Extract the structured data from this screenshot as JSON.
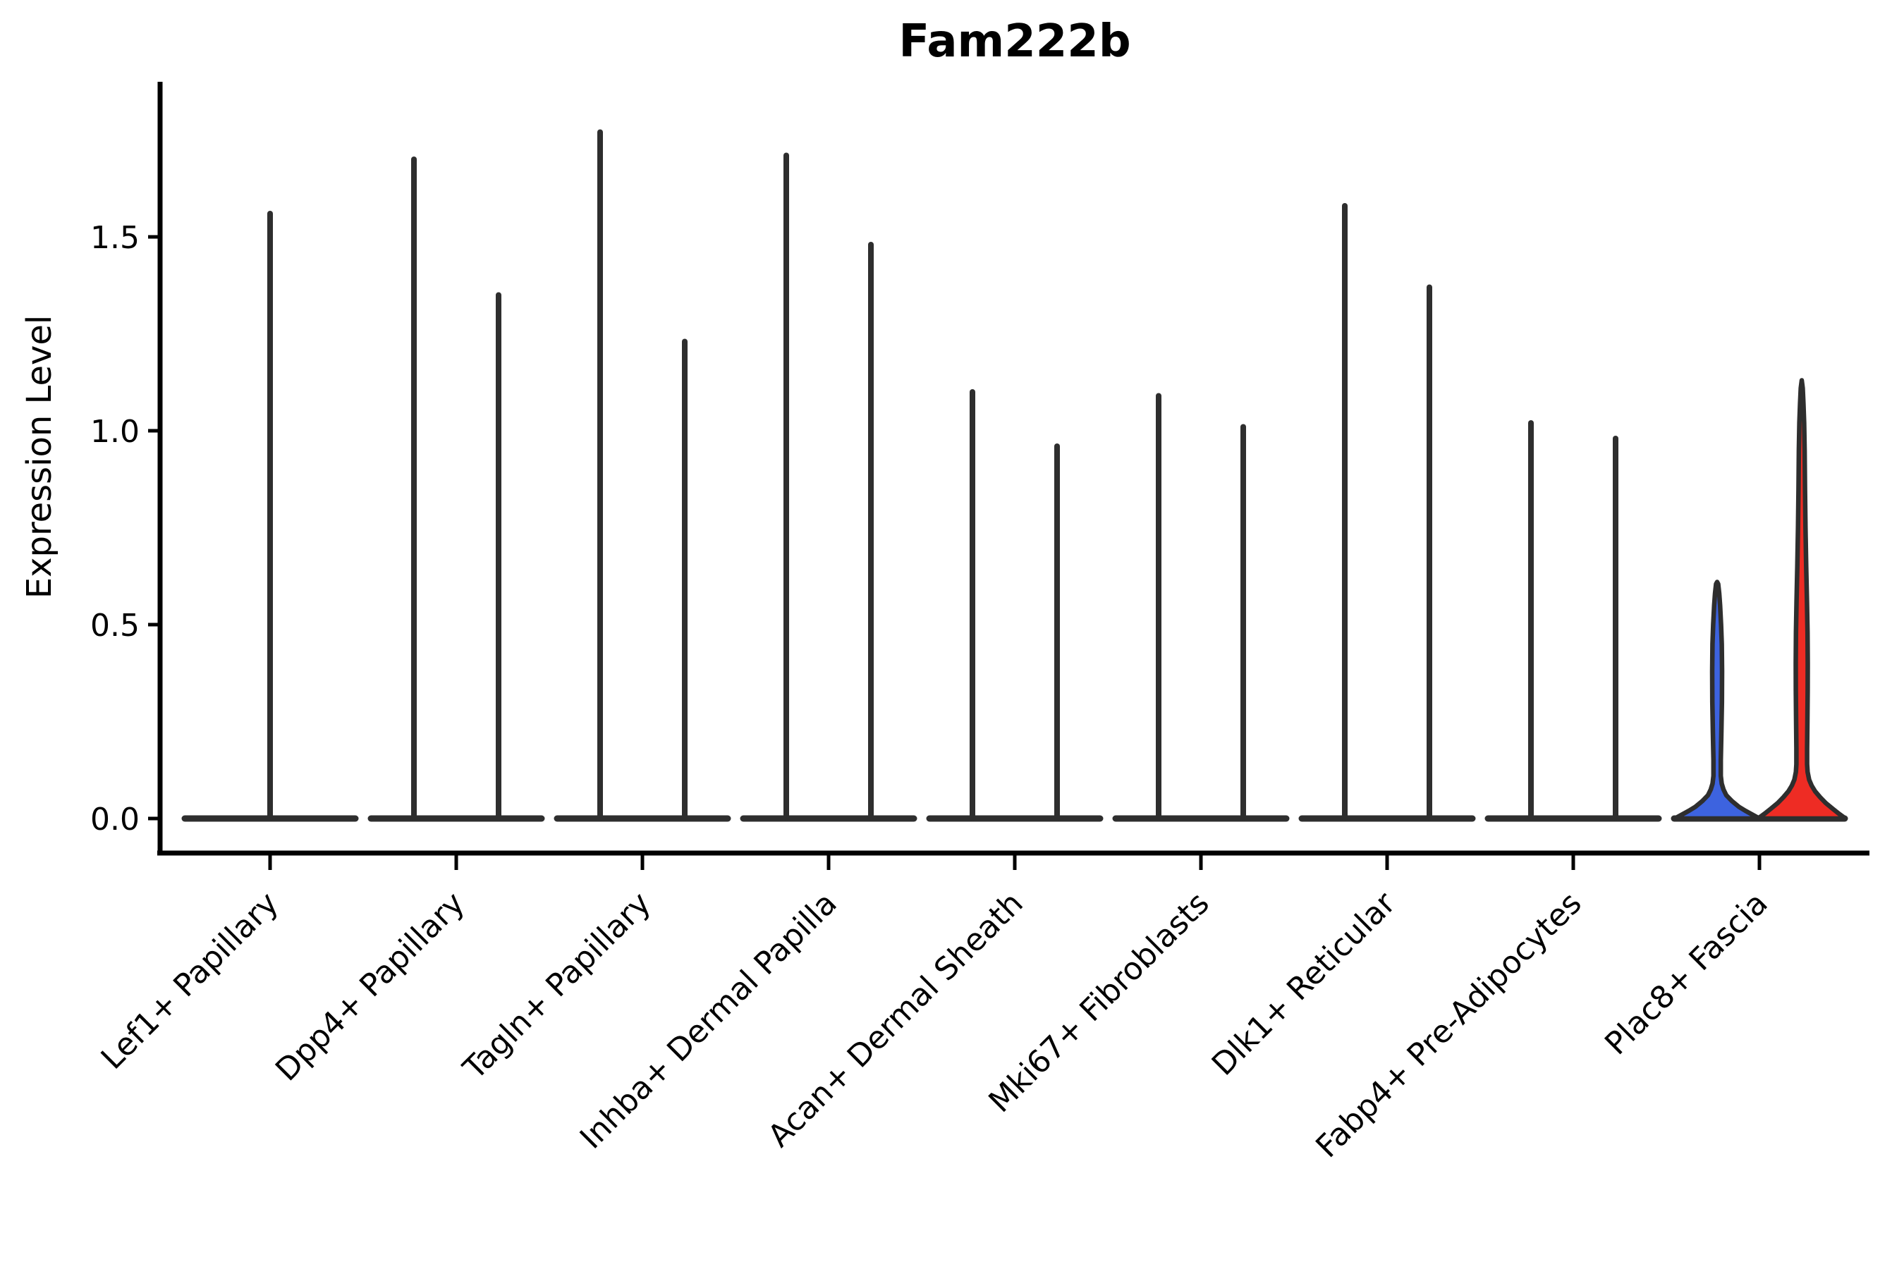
{
  "chart_data": {
    "type": "violin",
    "title": "Fam222b",
    "ylabel": "Expression Level",
    "xlabel": "",
    "grid": false,
    "legend": "none",
    "ylim": [
      -0.09,
      1.9
    ],
    "yticks": [
      {
        "label": "0.0",
        "value": 0.0
      },
      {
        "label": "0.5",
        "value": 0.5
      },
      {
        "label": "1.0",
        "value": 1.0
      },
      {
        "label": "1.5",
        "value": 1.5
      }
    ],
    "categories": [
      "Lef1+ Papillary",
      "Dpp4+ Papillary",
      "Tagln+ Papillary",
      "Inhba+ Dermal Papilla",
      "Acan+ Dermal Sheath",
      "Mki67+ Fibroblasts",
      "Dlk1+ Reticular",
      "Fabp4+ Pre-Adipocytes",
      "Plac8+ Fascia"
    ],
    "description": "Split violin plot; most violins are collapsed at expression 0 with a thin spike up to the max expression value",
    "violins": [
      {
        "category_index": 0,
        "position": "center",
        "style": "spike",
        "max": 1.56
      },
      {
        "category_index": 1,
        "position": "left",
        "style": "spike",
        "max": 1.7
      },
      {
        "category_index": 1,
        "position": "right",
        "style": "spike",
        "max": 1.35
      },
      {
        "category_index": 2,
        "position": "left",
        "style": "spike",
        "max": 1.77
      },
      {
        "category_index": 2,
        "position": "right",
        "style": "spike",
        "max": 1.23
      },
      {
        "category_index": 3,
        "position": "left",
        "style": "spike",
        "max": 1.71
      },
      {
        "category_index": 3,
        "position": "right",
        "style": "spike",
        "max": 1.48
      },
      {
        "category_index": 4,
        "position": "left",
        "style": "spike",
        "max": 1.1
      },
      {
        "category_index": 4,
        "position": "right",
        "style": "spike",
        "max": 0.96
      },
      {
        "category_index": 5,
        "position": "left",
        "style": "spike",
        "max": 1.09
      },
      {
        "category_index": 5,
        "position": "right",
        "style": "spike",
        "max": 1.01
      },
      {
        "category_index": 6,
        "position": "left",
        "style": "spike",
        "max": 1.58
      },
      {
        "category_index": 6,
        "position": "right",
        "style": "spike",
        "max": 1.37
      },
      {
        "category_index": 7,
        "position": "left",
        "style": "spike",
        "max": 1.02
      },
      {
        "category_index": 7,
        "position": "right",
        "style": "spike",
        "max": 0.98
      },
      {
        "category_index": 8,
        "position": "left",
        "style": "violin",
        "max": 0.61,
        "fill": "#3D63DF",
        "profile": [
          [
            0,
            60
          ],
          [
            0.01,
            50
          ],
          [
            0.02,
            40
          ],
          [
            0.03,
            31
          ],
          [
            0.045,
            21
          ],
          [
            0.06,
            13
          ],
          [
            0.075,
            9
          ],
          [
            0.09,
            6.5
          ],
          [
            0.11,
            5.2
          ],
          [
            0.15,
            5.2
          ],
          [
            0.22,
            6
          ],
          [
            0.3,
            6.8
          ],
          [
            0.38,
            7
          ],
          [
            0.45,
            6.6
          ],
          [
            0.5,
            5.6
          ],
          [
            0.55,
            4.2
          ],
          [
            0.58,
            3
          ],
          [
            0.605,
            1.5
          ],
          [
            0.61,
            0
          ]
        ]
      },
      {
        "category_index": 8,
        "position": "right",
        "style": "violin",
        "max": 1.13,
        "fill": "#EE2C24",
        "profile": [
          [
            0,
            62
          ],
          [
            0.012,
            53
          ],
          [
            0.025,
            44
          ],
          [
            0.04,
            34
          ],
          [
            0.055,
            26
          ],
          [
            0.07,
            19
          ],
          [
            0.085,
            14
          ],
          [
            0.1,
            10.5
          ],
          [
            0.12,
            8.3
          ],
          [
            0.14,
            7.6
          ],
          [
            0.18,
            7.6
          ],
          [
            0.25,
            8
          ],
          [
            0.33,
            8.4
          ],
          [
            0.4,
            8.5
          ],
          [
            0.48,
            8.2
          ],
          [
            0.56,
            7.4
          ],
          [
            0.65,
            6.3
          ],
          [
            0.75,
            5.3
          ],
          [
            0.85,
            4.6
          ],
          [
            0.95,
            4.1
          ],
          [
            1.02,
            3.4
          ],
          [
            1.07,
            2.4
          ],
          [
            1.11,
            1.4
          ],
          [
            1.13,
            0
          ]
        ]
      }
    ],
    "colors": {
      "violin_stroke": "#2e2e2e",
      "axis": "#000000",
      "blue_fill": "#3D63DF",
      "red_fill": "#EE2C24",
      "background": "#ffffff"
    }
  }
}
